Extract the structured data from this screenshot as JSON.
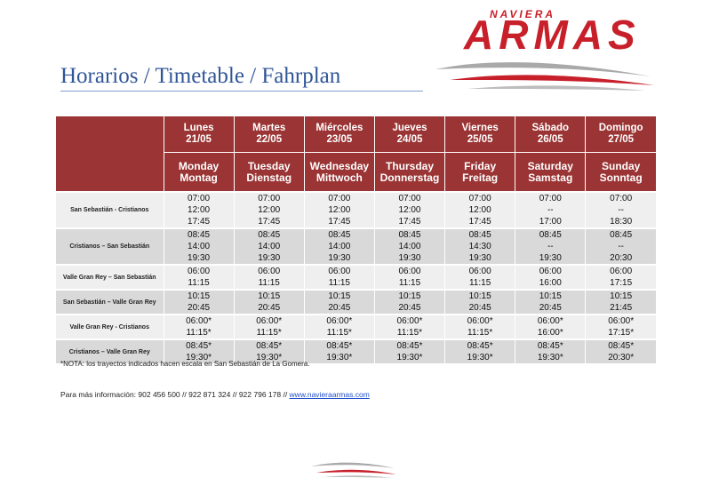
{
  "brand": {
    "sub": "NAVIERA",
    "name": "ARMAS"
  },
  "title": "Horarios / Timetable / Fahrplan",
  "days": [
    {
      "es": "Lunes",
      "date": "21/05",
      "en": "Monday",
      "de": "Montag"
    },
    {
      "es": "Martes",
      "date": "22/05",
      "en": "Tuesday",
      "de": "Dienstag"
    },
    {
      "es": "Miércoles",
      "date": "23/05",
      "en": "Wednesday",
      "de": "Mittwoch"
    },
    {
      "es": "Jueves",
      "date": "24/05",
      "en": "Thursday",
      "de": "Donnerstag"
    },
    {
      "es": "Viernes",
      "date": "25/05",
      "en": "Friday",
      "de": "Freitag"
    },
    {
      "es": "Sábado",
      "date": "26/05",
      "en": "Saturday",
      "de": "Samstag"
    },
    {
      "es": "Domingo",
      "date": "27/05",
      "en": "Sunday",
      "de": "Sonntag"
    }
  ],
  "routes": [
    {
      "name": "San Sebastián - Cristianos",
      "times": [
        [
          "07:00",
          "07:00",
          "07:00",
          "07:00",
          "07:00",
          "07:00",
          "07:00"
        ],
        [
          "12:00",
          "12:00",
          "12:00",
          "12:00",
          "12:00",
          "--",
          "--"
        ],
        [
          "17:45",
          "17:45",
          "17:45",
          "17:45",
          "17:45",
          "17:00",
          "18:30"
        ]
      ]
    },
    {
      "name": "Cristianos – San Sebastián",
      "times": [
        [
          "08:45",
          "08:45",
          "08:45",
          "08:45",
          "08:45",
          "08:45",
          "08:45"
        ],
        [
          "14:00",
          "14:00",
          "14:00",
          "14:00",
          "14:30",
          "--",
          "--"
        ],
        [
          "19:30",
          "19:30",
          "19:30",
          "19:30",
          "19:30",
          "19:30",
          "20:30"
        ]
      ]
    },
    {
      "name": "Valle Gran Rey – San Sebastián",
      "times": [
        [
          "06:00",
          "06:00",
          "06:00",
          "06:00",
          "06:00",
          "06:00",
          "06:00"
        ],
        [
          "11:15",
          "11:15",
          "11:15",
          "11:15",
          "11:15",
          "16:00",
          "17:15"
        ]
      ]
    },
    {
      "name": "San Sebastián – Valle Gran Rey",
      "times": [
        [
          "10:15",
          "10:15",
          "10:15",
          "10:15",
          "10:15",
          "10:15",
          "10:15"
        ],
        [
          "20:45",
          "20:45",
          "20:45",
          "20:45",
          "20:45",
          "20:45",
          "21:45"
        ]
      ]
    },
    {
      "name": "Valle Gran Rey - Cristianos",
      "times": [
        [
          "06:00*",
          "06:00*",
          "06:00*",
          "06:00*",
          "06:00*",
          "06:00*",
          "06:00*"
        ],
        [
          "11:15*",
          "11:15*",
          "11:15*",
          "11:15*",
          "11:15*",
          "16:00*",
          "17:15*"
        ]
      ]
    },
    {
      "name": "Cristianos – Valle Gran Rey",
      "times": [
        [
          "08:45*",
          "08:45*",
          "08:45*",
          "08:45*",
          "08:45*",
          "08:45*",
          "08:45*"
        ],
        [
          "19:30*",
          "19:30*",
          "19:30*",
          "19:30*",
          "19:30*",
          "19:30*",
          "20:30*"
        ]
      ]
    }
  ],
  "note": "*NOTA: los trayectos indicados hacen escala en San Sebastián de La Gomera.",
  "info": {
    "text": "Para más información: 902 456 500 // 922 871 324 // 922 796 178 // ",
    "link": "www.navieraarmas.com"
  },
  "colors": {
    "brand_red": "#c8202a",
    "header_bg": "#9b3434",
    "title_blue": "#2f5597"
  }
}
